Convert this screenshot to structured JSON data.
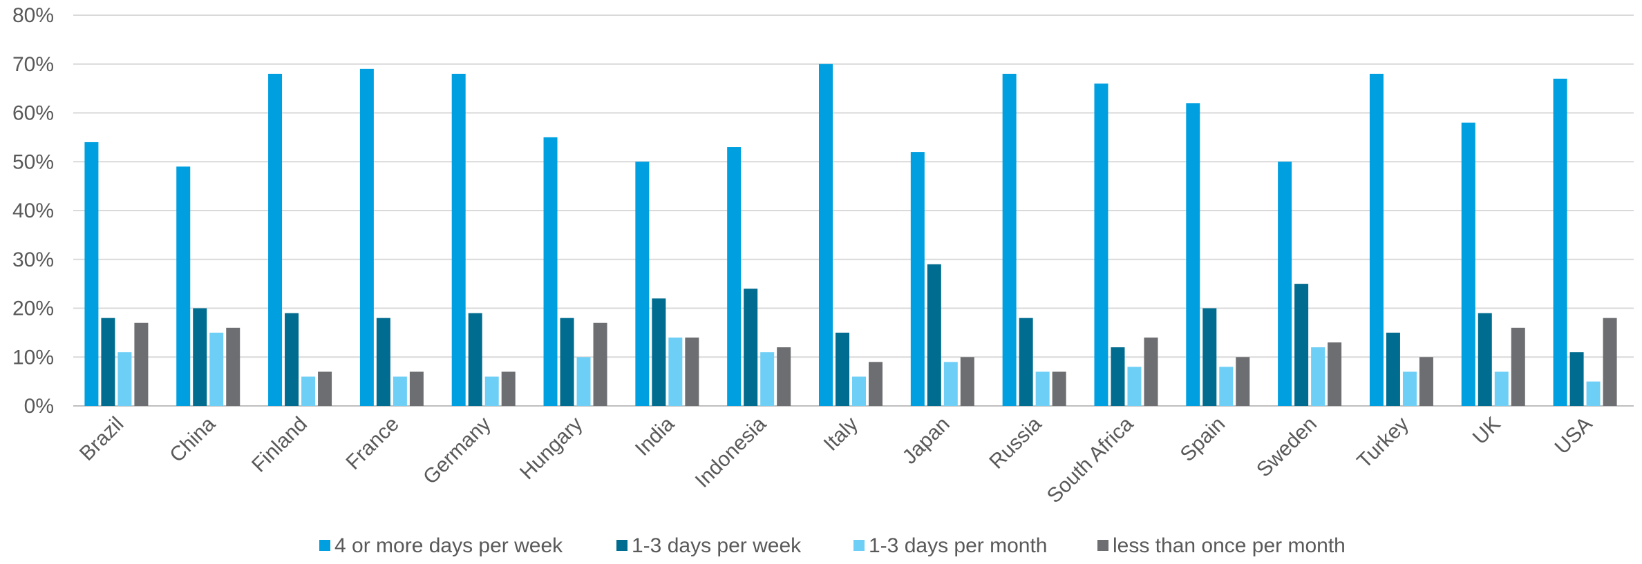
{
  "colors": {
    "series": [
      "#00A0E0",
      "#006C8F",
      "#6ECFF6",
      "#6D6E71"
    ],
    "grid": "#d9d9d9",
    "text": "#595959"
  },
  "chart_data": {
    "type": "bar",
    "title": "",
    "xlabel": "",
    "ylabel": "",
    "ylim": [
      0,
      80
    ],
    "yticks": [
      "0%",
      "10%",
      "20%",
      "30%",
      "40%",
      "50%",
      "60%",
      "70%",
      "80%"
    ],
    "grid": true,
    "legend_position": "bottom",
    "categories": [
      "Brazil",
      "China",
      "Finland",
      "France",
      "Germany",
      "Hungary",
      "India",
      "Indonesia",
      "Italy",
      "Japan",
      "Russia",
      "South Africa",
      "Spain",
      "Sweden",
      "Turkey",
      "UK",
      "USA"
    ],
    "series": [
      {
        "name": "4 or more days per week",
        "values": [
          54,
          49,
          68,
          69,
          68,
          55,
          50,
          53,
          70,
          52,
          68,
          66,
          62,
          50,
          68,
          58,
          67
        ]
      },
      {
        "name": "1-3 days per week",
        "values": [
          18,
          20,
          19,
          18,
          19,
          18,
          22,
          24,
          15,
          29,
          18,
          12,
          20,
          25,
          15,
          19,
          11
        ]
      },
      {
        "name": "1-3 days per month",
        "values": [
          11,
          15,
          6,
          6,
          6,
          10,
          14,
          11,
          6,
          9,
          7,
          8,
          8,
          12,
          7,
          7,
          5
        ]
      },
      {
        "name": "less than once per month",
        "values": [
          17,
          16,
          7,
          7,
          7,
          17,
          14,
          12,
          9,
          10,
          7,
          14,
          10,
          13,
          10,
          16,
          18
        ]
      }
    ]
  }
}
